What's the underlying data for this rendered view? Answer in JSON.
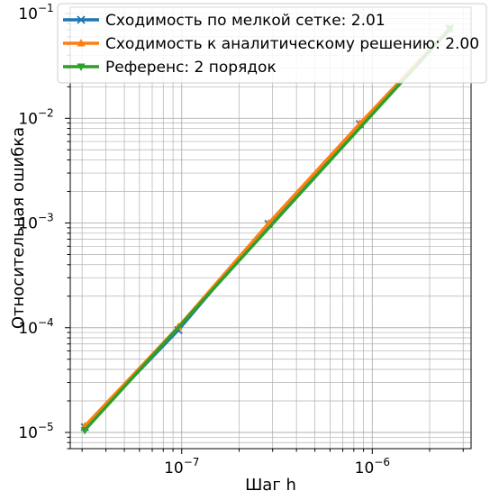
{
  "chart_data": {
    "type": "line",
    "xscale": "log",
    "yscale": "log",
    "xlabel": "Шаг h",
    "ylabel": "Относительная ошибка",
    "xlim": [
      2.6e-08,
      3.3e-06
    ],
    "ylim": [
      7e-06,
      0.115
    ],
    "x_major_ticks": [
      {
        "value": 1e-07,
        "base": "10",
        "exp": "−7"
      },
      {
        "value": 1e-06,
        "base": "10",
        "exp": "−6"
      }
    ],
    "y_major_ticks": [
      {
        "value": 1e-05,
        "base": "10",
        "exp": "−5"
      },
      {
        "value": 0.0001,
        "base": "10",
        "exp": "−4"
      },
      {
        "value": 0.001,
        "base": "10",
        "exp": "−3"
      },
      {
        "value": 0.01,
        "base": "10",
        "exp": "−2"
      },
      {
        "value": 0.1,
        "base": "10",
        "exp": "−1"
      }
    ],
    "grid": true,
    "legend_position": "top-center",
    "series": [
      {
        "name": "Сходимость по мелкой сетке: 2.01",
        "color": "#1f77b4",
        "marker": "x",
        "x": [
          3.1e-08,
          9.6e-08,
          2.85e-07,
          8.6e-07,
          2.55e-06
        ],
        "y": [
          1.12e-05,
          9.5e-05,
          0.00098,
          0.0088,
          0.072
        ]
      },
      {
        "name": "Сходимость к аналитическому решению: 2.00",
        "color": "#ff7f0e",
        "marker": "triangle-up",
        "x": [
          3.1e-08,
          9.6e-08,
          2.85e-07,
          8.6e-07,
          2.55e-06
        ],
        "y": [
          1.15e-05,
          0.000102,
          0.00099,
          0.0089,
          0.072
        ]
      },
      {
        "name": "Референс: 2 порядок",
        "color": "#2ca02c",
        "marker": "triangle-down",
        "x": [
          3.1e-08,
          2.55e-06
        ],
        "y": [
          1.05e-05,
          0.071
        ]
      }
    ]
  }
}
